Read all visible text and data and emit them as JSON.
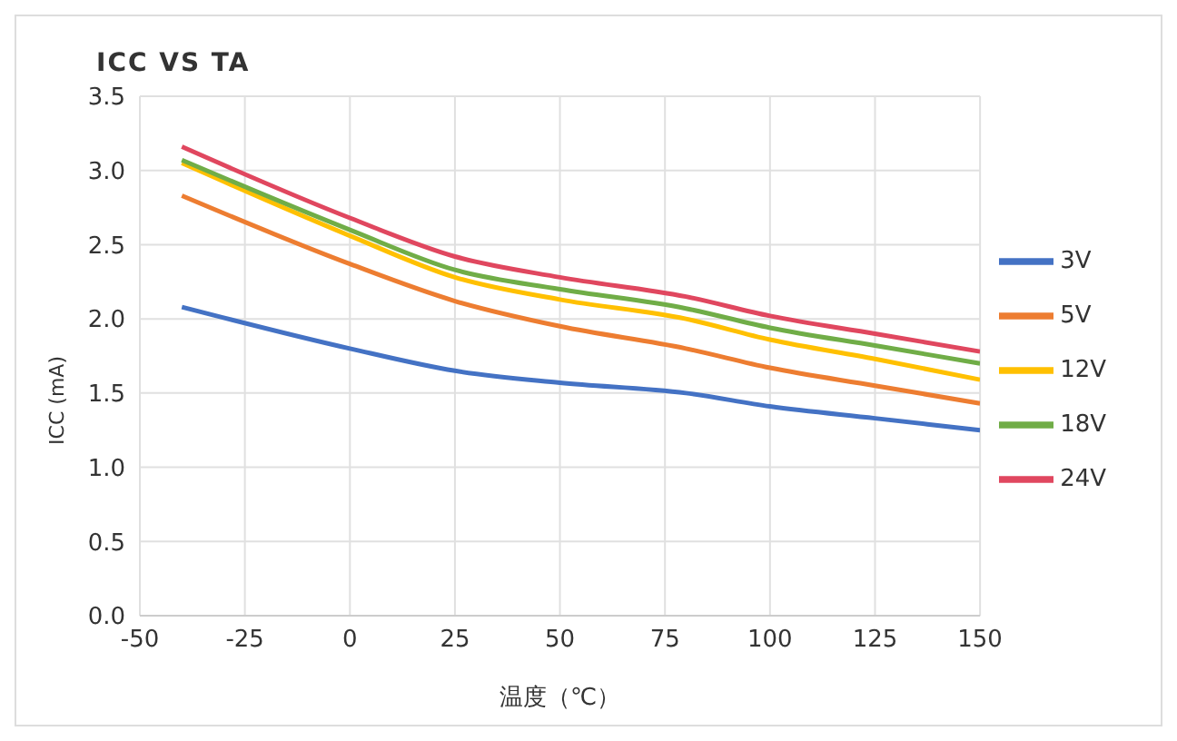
{
  "chart_data": {
    "type": "line",
    "title": "ICC VS TA",
    "xlabel": "温度（℃）",
    "ylabel": "ICC (mA)",
    "x": [
      -40,
      0,
      25,
      50,
      80,
      100,
      125,
      150
    ],
    "series": [
      {
        "name": "3V",
        "color": "#4472c4",
        "values": [
          2.08,
          1.8,
          1.65,
          1.57,
          1.5,
          1.41,
          1.33,
          1.25
        ]
      },
      {
        "name": "5V",
        "color": "#ed7d31",
        "values": [
          2.83,
          2.37,
          2.12,
          1.95,
          1.8,
          1.67,
          1.55,
          1.43
        ]
      },
      {
        "name": "12V",
        "color": "#ffc000",
        "values": [
          3.05,
          2.56,
          2.28,
          2.13,
          2.0,
          1.86,
          1.73,
          1.59
        ]
      },
      {
        "name": "18V",
        "color": "#70ad47",
        "values": [
          3.07,
          2.6,
          2.33,
          2.2,
          2.07,
          1.94,
          1.82,
          1.7
        ]
      },
      {
        "name": "24V",
        "color": "#e0475f",
        "values": [
          3.16,
          2.68,
          2.42,
          2.28,
          2.15,
          2.02,
          1.9,
          1.78
        ]
      }
    ],
    "xlim": [
      -50,
      150
    ],
    "xticks": [
      -50,
      -25,
      0,
      25,
      50,
      75,
      100,
      125,
      150
    ],
    "ylim": [
      0,
      3.5
    ],
    "yticks": [
      {
        "value": 0,
        "label": "0.0"
      },
      0.5,
      {
        "value": 1,
        "label": "1.0"
      },
      1.5,
      {
        "value": 2,
        "label": "2.0"
      },
      2.5,
      {
        "value": 3,
        "label": "3.0"
      },
      3.5
    ],
    "grid": true,
    "legend": "right",
    "marker": "none",
    "line_style": "solid"
  }
}
